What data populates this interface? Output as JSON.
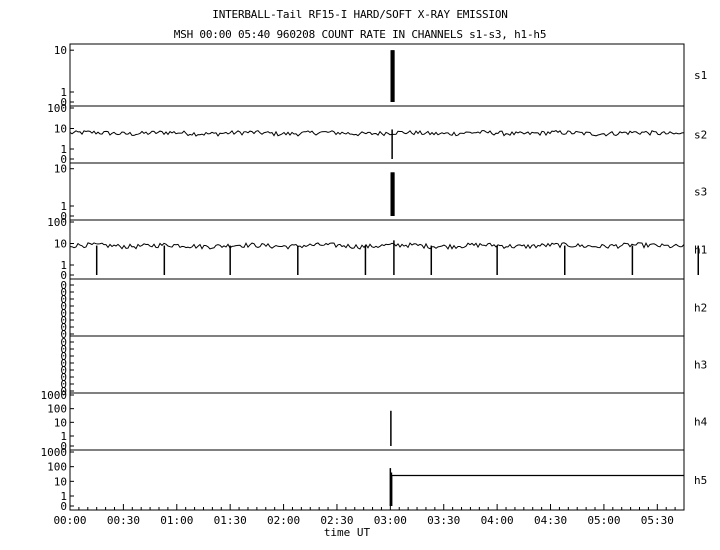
{
  "header": {
    "title": "INTERBALL-Tail RF15-I HARD/SOFT X-RAY EMISSION",
    "subtitle": "MSH 00:00 05:40 960208  COUNT RATE IN CHANNELS s1-s3, h1-h5"
  },
  "chart_data": {
    "type": "line",
    "title": "INTERBALL-Tail RF15-I HARD/SOFT X-RAY EMISSION",
    "subtitle": "MSH 00:00 05:40 960208  COUNT RATE IN CHANNELS s1-s3, h1-h5",
    "xlabel": "time UT",
    "x_range_minutes": [
      0,
      345
    ],
    "x_ticks": [
      "00:00",
      "00:30",
      "01:00",
      "01:30",
      "02:00",
      "02:30",
      "03:00",
      "03:30",
      "04:00",
      "04:30",
      "05:00",
      "05:30"
    ],
    "y_scale": "log",
    "panels": [
      {
        "name": "s1",
        "y_ticks": [
          "10",
          "1",
          "0"
        ],
        "log_max": 1.1,
        "baseline": null,
        "spikes": [
          {
            "t": 180.5,
            "v": 10
          },
          {
            "t": 181.0,
            "v": 10
          },
          {
            "t": 181.5,
            "v": 10
          },
          {
            "t": 182.0,
            "v": 10
          }
        ],
        "step_after": null
      },
      {
        "name": "s2",
        "y_ticks": [
          "100",
          "10",
          "1",
          "0"
        ],
        "log_max": 2.0,
        "baseline": 6,
        "spikes": [
          {
            "t": 181,
            "v": 9
          }
        ],
        "step_after": null
      },
      {
        "name": "s3",
        "y_ticks": [
          "10",
          "1",
          "0"
        ],
        "log_max": 1.1,
        "baseline": null,
        "spikes": [
          {
            "t": 180.5,
            "v": 8
          },
          {
            "t": 181.0,
            "v": 8
          },
          {
            "t": 181.5,
            "v": 8
          },
          {
            "t": 182.0,
            "v": 8
          }
        ],
        "step_after": null
      },
      {
        "name": "h1",
        "y_ticks": [
          "100",
          "10",
          "1",
          "0"
        ],
        "log_max": 2.0,
        "baseline": 8,
        "spikes": [
          {
            "t": 182,
            "v": 14
          }
        ],
        "dips": [
          15,
          53,
          90,
          128,
          166,
          203,
          240,
          278,
          316,
          353
        ],
        "step_after": null
      },
      {
        "name": "h2",
        "y_ticks": [
          "0",
          "0",
          "0",
          "0",
          "0",
          "0",
          "0",
          "0"
        ],
        "log_max": 1.0,
        "baseline": null,
        "spikes": [],
        "step_after": null
      },
      {
        "name": "h3",
        "y_ticks": [
          "0",
          "0",
          "0",
          "0",
          "0",
          "0",
          "0",
          "0"
        ],
        "log_max": 1.0,
        "baseline": null,
        "spikes": [],
        "step_after": null
      },
      {
        "name": "h4",
        "y_ticks": [
          "1000",
          "100",
          "10",
          "1",
          "0"
        ],
        "log_max": 3.0,
        "baseline": null,
        "spikes": [
          {
            "t": 180.3,
            "v": 70
          }
        ],
        "step_after": null
      },
      {
        "name": "h5",
        "y_ticks": [
          "1000",
          "100",
          "10",
          "1",
          "0"
        ],
        "log_max": 3.0,
        "baseline": null,
        "spikes": [
          {
            "t": 180.0,
            "v": 80
          },
          {
            "t": 180.6,
            "v": 40
          }
        ],
        "step_after": {
          "t": 180.8,
          "v": 25
        }
      }
    ]
  }
}
